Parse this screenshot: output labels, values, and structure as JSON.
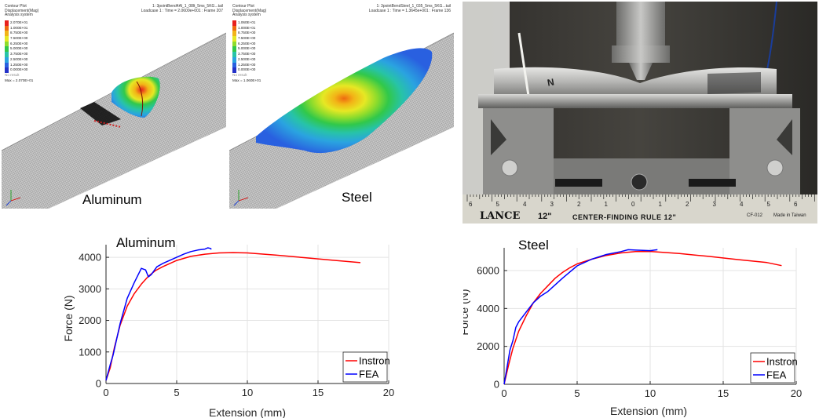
{
  "fea_panels": [
    {
      "id": "aluminum",
      "caption": "Aluminum",
      "header_left": [
        "Contour Plot",
        "Displacement(Mag)",
        "Analysis system"
      ],
      "header_right": [
        "1: 3pointBend4Al_1_08lt_5ms_5KG...tail",
        "Loadcase 1 : Time = 2.0600e+001 : Frame 207"
      ],
      "legend_values": [
        "2.070E+01",
        "1.000E+01",
        "8.750E+00",
        "7.500E+00",
        "6.250E+00",
        "5.000E+00",
        "3.750E+00",
        "2.500E+00",
        "1.250E+00",
        "0.000E+00"
      ],
      "legend_colors": [
        "#e8201e",
        "#ee6a10",
        "#f2b417",
        "#e6e824",
        "#8edc2c",
        "#31c84a",
        "#27c3a8",
        "#2aa3e0",
        "#2960e0",
        "#2432c8"
      ],
      "no_result": "No result",
      "max_label": "Max = 2.070E+01"
    },
    {
      "id": "steel",
      "caption": "Steel",
      "header_left": [
        "Contour Plot",
        "Displacement(Mag)",
        "Analysis system"
      ],
      "header_right": [
        "1: 3pointBendSteel_1_035_5ms_5KG...tail",
        "Loadcase 1 : Time = 1.3645e+001 : Frame 136"
      ],
      "legend_values": [
        "1.060E+01",
        "1.000E+01",
        "8.750E+00",
        "7.500E+00",
        "6.250E+00",
        "5.000E+00",
        "3.750E+00",
        "2.500E+00",
        "1.250E+00",
        "0.000E+00"
      ],
      "legend_colors": [
        "#e8201e",
        "#ee6a10",
        "#f2b417",
        "#e6e824",
        "#8edc2c",
        "#31c84a",
        "#27c3a8",
        "#2aa3e0",
        "#2960e0",
        "#2432c8"
      ],
      "no_result": "No result",
      "max_label": "Max = 1.060E+01"
    }
  ],
  "photo": {
    "ruler_brand": "LANCE",
    "ruler_size": "12\"",
    "ruler_text": "CENTER-FINDING RULE 12\"",
    "ruler_code": "CF-012",
    "ruler_origin": "Made in Taiwan",
    "ruler_numbers": [
      "6",
      "5",
      "4",
      "3",
      "2",
      "1",
      "0",
      "1",
      "2",
      "3",
      "4",
      "5",
      "6"
    ],
    "tube_mark": "N"
  },
  "chart_data": [
    {
      "type": "line",
      "title": "Aluminum",
      "xlabel": "Extension (mm)",
      "ylabel": "Force (N)",
      "xlim": [
        0,
        20
      ],
      "ylim": [
        0,
        4400
      ],
      "xticks": [
        "0",
        "5",
        "10",
        "15",
        "20"
      ],
      "yticks": [
        "0",
        "1000",
        "2000",
        "3000",
        "4000"
      ],
      "ytick_values": [
        0,
        1000,
        2000,
        3000,
        4000
      ],
      "xtick_values": [
        0,
        5,
        10,
        15,
        20
      ],
      "grid": true,
      "legend_position": "bottom-right",
      "series": [
        {
          "name": "Instron",
          "color": "#ff0000",
          "x": [
            0,
            0.3,
            0.6,
            1.0,
            1.5,
            2.0,
            2.5,
            3.0,
            3.5,
            4.0,
            5.0,
            6.0,
            7.0,
            8.0,
            9.0,
            10.0,
            12.0,
            14.0,
            16.0,
            18.0
          ],
          "y": [
            100,
            500,
            1150,
            1850,
            2450,
            2850,
            3150,
            3400,
            3580,
            3700,
            3900,
            4030,
            4100,
            4140,
            4150,
            4140,
            4070,
            3990,
            3910,
            3830
          ]
        },
        {
          "name": "FEA",
          "color": "#0000ff",
          "x": [
            0,
            0.3,
            0.5,
            1.0,
            1.5,
            2.0,
            2.5,
            2.8,
            3.0,
            3.2,
            3.6,
            4.0,
            4.5,
            5.0,
            5.5,
            6.0,
            6.5,
            7.0,
            7.2,
            7.4,
            7.45
          ],
          "y": [
            100,
            600,
            900,
            1900,
            2700,
            3200,
            3650,
            3600,
            3380,
            3450,
            3700,
            3800,
            3900,
            4000,
            4100,
            4180,
            4230,
            4260,
            4300,
            4280,
            4250
          ]
        }
      ]
    },
    {
      "type": "line",
      "title": "Steel",
      "xlabel": "Extension (mm)",
      "ylabel": "Force (N)",
      "xlim": [
        0,
        20
      ],
      "ylim": [
        0,
        7200
      ],
      "xticks": [
        "0",
        "5",
        "10",
        "15",
        "20"
      ],
      "yticks": [
        "0",
        "2000",
        "4000",
        "6000"
      ],
      "ytick_values": [
        0,
        2000,
        4000,
        6000
      ],
      "xtick_values": [
        0,
        5,
        10,
        15,
        20
      ],
      "grid": true,
      "legend_position": "bottom-right",
      "series": [
        {
          "name": "Instron",
          "color": "#ff0000",
          "x": [
            0,
            0.3,
            0.6,
            1.0,
            1.5,
            2.0,
            2.5,
            3.0,
            3.5,
            4.0,
            4.5,
            5.0,
            6.0,
            7.0,
            8.0,
            9.0,
            10.0,
            12.0,
            14.0,
            16.0,
            18.0,
            19.0
          ],
          "y": [
            0,
            1000,
            1900,
            2800,
            3600,
            4300,
            4800,
            5200,
            5600,
            5900,
            6150,
            6350,
            6600,
            6800,
            6930,
            7000,
            7010,
            6900,
            6750,
            6580,
            6420,
            6260
          ]
        },
        {
          "name": "FEA",
          "color": "#0000ff",
          "x": [
            0,
            0.2,
            0.4,
            0.6,
            0.8,
            1.0,
            1.5,
            2.0,
            2.5,
            3.0,
            4.0,
            5.0,
            6.0,
            7.0,
            8.0,
            8.5,
            9.0,
            10.0,
            10.5
          ],
          "y": [
            0,
            900,
            1800,
            2300,
            3000,
            3300,
            3800,
            4300,
            4650,
            4900,
            5600,
            6250,
            6600,
            6850,
            7000,
            7100,
            7080,
            7050,
            7100
          ]
        }
      ]
    }
  ]
}
